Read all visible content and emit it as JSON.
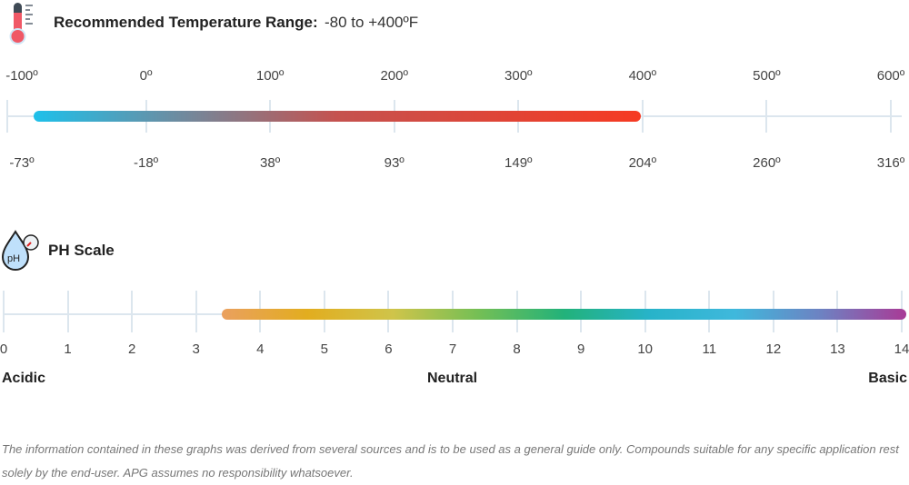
{
  "temperature": {
    "title": "Recommended Temperature Range:",
    "range": "-80 to +400ºF",
    "fahrenheit": [
      "-100º",
      "0º",
      "100º",
      "200º",
      "300º",
      "400º",
      "500º",
      "600º"
    ],
    "celsius": [
      "-73º",
      "-18º",
      "38º",
      "93º",
      "149º",
      "204º",
      "260º",
      "316º"
    ],
    "min_f": -80,
    "max_f": 400,
    "colors": [
      "#1ec0ea",
      "#c5524f",
      "#f63a22"
    ]
  },
  "ph": {
    "title": "PH Scale",
    "values": [
      "0",
      "1",
      "2",
      "3",
      "4",
      "5",
      "6",
      "7",
      "8",
      "9",
      "10",
      "11",
      "12",
      "13",
      "14"
    ],
    "acidic": "Acidic",
    "neutral": "Neutral",
    "basic": "Basic",
    "icon_text": "pH",
    "range_start": 3.4,
    "range_end": 14
  },
  "note": "The information contained in these graphs was derived from several sources and is to be used as a general guide only. Compounds suitable for any specific application rest solely by the end-user. APG assumes no responsibility whatsoever."
}
